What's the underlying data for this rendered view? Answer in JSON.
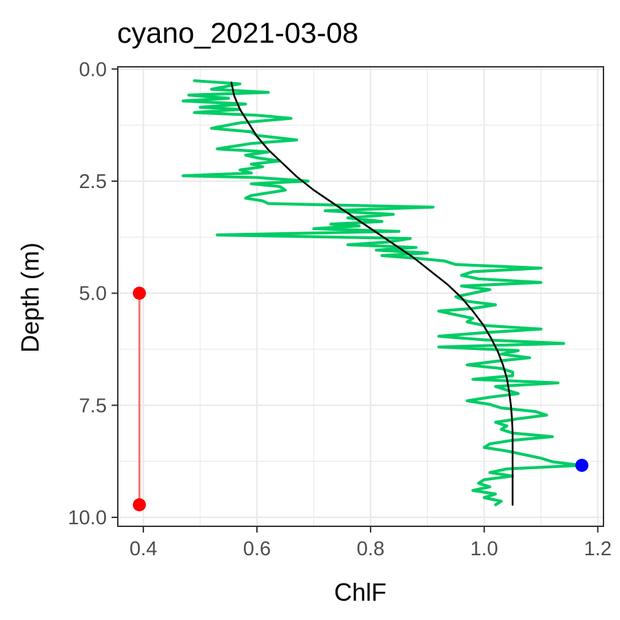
{
  "chart_data": {
    "type": "line",
    "title": "cyano_2021-03-08",
    "xlabel": "ChlF",
    "ylabel": "Depth (m)",
    "xlim": [
      0.355,
      1.21
    ],
    "ylim": [
      10.2,
      -0.05
    ],
    "y_reversed": true,
    "grid": true,
    "legend": "none",
    "x_ticks": [
      0.4,
      0.6,
      0.8,
      1.0,
      1.2
    ],
    "x_tick_labels": [
      "0.4",
      "0.6",
      "0.8",
      "1.0",
      "1.2"
    ],
    "y_ticks": [
      0.0,
      2.5,
      5.0,
      7.5,
      10.0
    ],
    "y_tick_labels": [
      "0.0",
      "2.5",
      "5.0",
      "7.5",
      "10.0"
    ],
    "colors": {
      "profile": "#00cc66",
      "smooth": "#000000",
      "range_marker": "#ff0000",
      "range_line": "#f8766d",
      "max_point": "#0000ff",
      "grid": "#ebebeb",
      "panel_border": "#333333"
    },
    "series": [
      {
        "type": "line",
        "color": "#00cc66",
        "points": [
          [
            0.49,
            0.26
          ],
          [
            0.57,
            0.33
          ],
          [
            0.52,
            0.45
          ],
          [
            0.62,
            0.52
          ],
          [
            0.48,
            0.58
          ],
          [
            0.55,
            0.65
          ],
          [
            0.47,
            0.71
          ],
          [
            0.58,
            0.78
          ],
          [
            0.5,
            0.85
          ],
          [
            0.57,
            0.9
          ],
          [
            0.49,
            0.97
          ],
          [
            0.6,
            1.03
          ],
          [
            0.66,
            1.1
          ],
          [
            0.57,
            1.2
          ],
          [
            0.52,
            1.32
          ],
          [
            0.59,
            1.4
          ],
          [
            0.6,
            1.48
          ],
          [
            0.67,
            1.58
          ],
          [
            0.59,
            1.66
          ],
          [
            0.56,
            1.72
          ],
          [
            0.53,
            1.78
          ],
          [
            0.62,
            1.85
          ],
          [
            0.58,
            1.92
          ],
          [
            0.6,
            1.98
          ],
          [
            0.64,
            2.05
          ],
          [
            0.59,
            2.12
          ],
          [
            0.61,
            2.18
          ],
          [
            0.57,
            2.25
          ],
          [
            0.59,
            2.32
          ],
          [
            0.47,
            2.38
          ],
          [
            0.6,
            2.42
          ],
          [
            0.69,
            2.5
          ],
          [
            0.59,
            2.56
          ],
          [
            0.64,
            2.62
          ],
          [
            0.65,
            2.7
          ],
          [
            0.62,
            2.76
          ],
          [
            0.59,
            2.82
          ],
          [
            0.58,
            2.88
          ],
          [
            0.61,
            2.94
          ],
          [
            0.62,
            3.0
          ],
          [
            0.91,
            3.08
          ],
          [
            0.72,
            3.16
          ],
          [
            0.84,
            3.24
          ],
          [
            0.76,
            3.32
          ],
          [
            0.82,
            3.4
          ],
          [
            0.73,
            3.46
          ],
          [
            0.78,
            3.5
          ],
          [
            0.7,
            3.56
          ],
          [
            0.85,
            3.62
          ],
          [
            0.53,
            3.7
          ],
          [
            0.87,
            3.78
          ],
          [
            0.83,
            3.86
          ],
          [
            0.76,
            3.92
          ],
          [
            0.88,
            3.98
          ],
          [
            0.81,
            4.04
          ],
          [
            0.9,
            4.1
          ],
          [
            0.82,
            4.16
          ],
          [
            0.88,
            4.22
          ],
          [
            0.93,
            4.28
          ],
          [
            0.95,
            4.36
          ],
          [
            1.1,
            4.44
          ],
          [
            0.98,
            4.52
          ],
          [
            0.96,
            4.6
          ],
          [
            0.99,
            4.68
          ],
          [
            1.1,
            4.76
          ],
          [
            0.96,
            4.84
          ],
          [
            1.01,
            4.92
          ],
          [
            0.98,
            5.0
          ],
          [
            0.95,
            5.08
          ],
          [
            0.97,
            5.18
          ],
          [
            1.02,
            5.26
          ],
          [
            0.98,
            5.34
          ],
          [
            0.92,
            5.4
          ],
          [
            0.95,
            5.48
          ],
          [
            0.98,
            5.56
          ],
          [
            0.97,
            5.64
          ],
          [
            1.0,
            5.72
          ],
          [
            1.1,
            5.8
          ],
          [
            1.0,
            5.88
          ],
          [
            0.92,
            5.96
          ],
          [
            1.0,
            6.04
          ],
          [
            1.14,
            6.12
          ],
          [
            0.92,
            6.2
          ],
          [
            1.06,
            6.28
          ],
          [
            1.03,
            6.36
          ],
          [
            1.08,
            6.44
          ],
          [
            1.02,
            6.52
          ],
          [
            0.97,
            6.6
          ],
          [
            1.03,
            6.68
          ],
          [
            1.05,
            6.76
          ],
          [
            1.05,
            6.84
          ],
          [
            0.98,
            6.92
          ],
          [
            1.13,
            7.0
          ],
          [
            1.02,
            7.08
          ],
          [
            1.04,
            7.16
          ],
          [
            1.06,
            7.24
          ],
          [
            1.01,
            7.32
          ],
          [
            0.97,
            7.4
          ],
          [
            1.01,
            7.48
          ],
          [
            1.03,
            7.56
          ],
          [
            1.09,
            7.64
          ],
          [
            1.11,
            7.72
          ],
          [
            1.06,
            7.8
          ],
          [
            1.02,
            7.88
          ],
          [
            1.04,
            7.96
          ],
          [
            1.03,
            8.04
          ],
          [
            1.05,
            8.12
          ],
          [
            1.12,
            8.2
          ],
          [
            1.05,
            8.28
          ],
          [
            1.01,
            8.36
          ],
          [
            1.0,
            8.44
          ],
          [
            1.04,
            8.52
          ],
          [
            1.07,
            8.6
          ],
          [
            1.1,
            8.68
          ],
          [
            1.12,
            8.76
          ],
          [
            1.17,
            8.84
          ],
          [
            1.04,
            8.92
          ],
          [
            1.01,
            9.0
          ],
          [
            1.05,
            9.08
          ],
          [
            1.0,
            9.16
          ],
          [
            0.99,
            9.24
          ],
          [
            1.01,
            9.32
          ],
          [
            0.98,
            9.4
          ],
          [
            1.02,
            9.48
          ],
          [
            1.0,
            9.56
          ],
          [
            1.03,
            9.64
          ],
          [
            1.02,
            9.72
          ]
        ]
      },
      {
        "type": "line",
        "color": "#000000",
        "points": [
          [
            0.555,
            0.3
          ],
          [
            0.56,
            0.6
          ],
          [
            0.57,
            0.9
          ],
          [
            0.585,
            1.2
          ],
          [
            0.6,
            1.5
          ],
          [
            0.62,
            1.8
          ],
          [
            0.645,
            2.1
          ],
          [
            0.67,
            2.4
          ],
          [
            0.7,
            2.7
          ],
          [
            0.735,
            3.0
          ],
          [
            0.77,
            3.3
          ],
          [
            0.805,
            3.6
          ],
          [
            0.84,
            3.9
          ],
          [
            0.875,
            4.2
          ],
          [
            0.905,
            4.5
          ],
          [
            0.935,
            4.8
          ],
          [
            0.96,
            5.1
          ],
          [
            0.98,
            5.4
          ],
          [
            0.998,
            5.7
          ],
          [
            1.012,
            6.0
          ],
          [
            1.024,
            6.3
          ],
          [
            1.033,
            6.6
          ],
          [
            1.04,
            6.9
          ],
          [
            1.044,
            7.2
          ],
          [
            1.047,
            7.5
          ],
          [
            1.049,
            7.8
          ],
          [
            1.05,
            8.1
          ],
          [
            1.05,
            8.5
          ],
          [
            1.05,
            8.9
          ],
          [
            1.05,
            9.3
          ],
          [
            1.05,
            9.72
          ]
        ]
      },
      {
        "type": "segment",
        "color": "#f8766d",
        "points": [
          [
            0.393,
            5.0
          ],
          [
            0.393,
            9.72
          ]
        ]
      },
      {
        "type": "points",
        "color": "#ff0000",
        "points": [
          [
            0.393,
            5.0
          ],
          [
            0.393,
            9.72
          ]
        ]
      },
      {
        "type": "points",
        "color": "#0000ff",
        "points": [
          [
            1.172,
            8.84
          ]
        ]
      }
    ]
  }
}
